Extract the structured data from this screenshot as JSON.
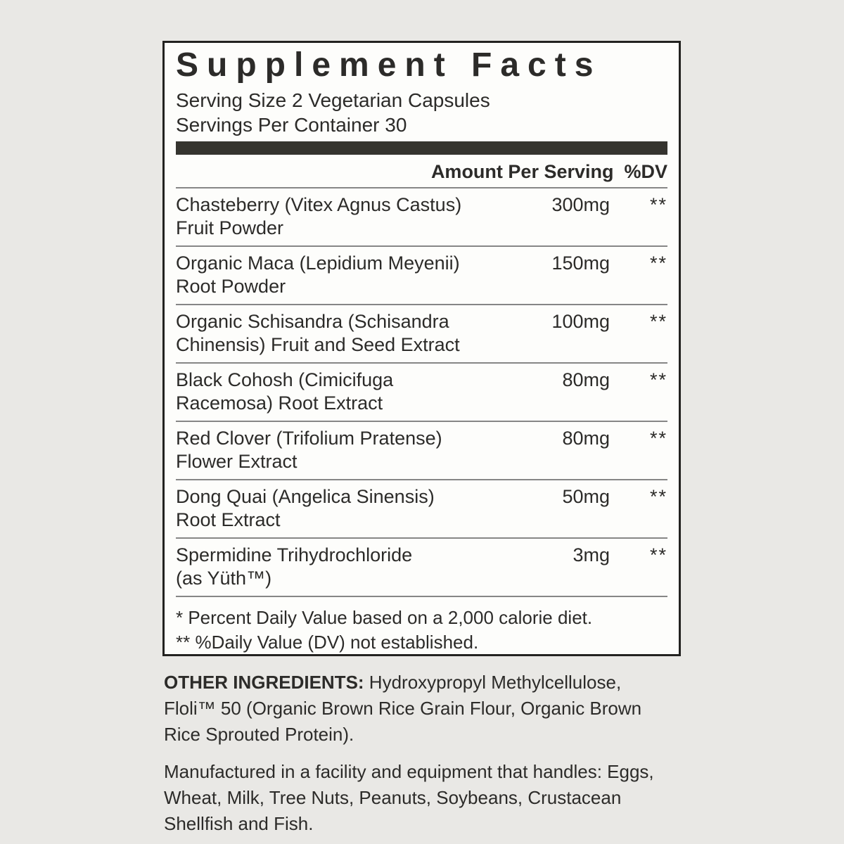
{
  "colors": {
    "page_background": "#e9e8e5",
    "panel_background": "#fdfdfb",
    "text": "#2c2b29",
    "border": "#232220",
    "divider": "#868686",
    "thick_bar": "#35342f"
  },
  "panel": {
    "title": "Supplement Facts",
    "serving_size": "Serving Size 2 Vegetarian Capsules",
    "servings_per_container": "Servings Per Container 30",
    "header": {
      "amount_label": "Amount Per Serving",
      "dv_label": "%DV"
    },
    "rows": [
      {
        "name": [
          "Chasteberry (Vitex Agnus Castus)",
          "Fruit Powder"
        ],
        "amount": "300mg",
        "dv": "**"
      },
      {
        "name": [
          "Organic Maca (Lepidium Meyenii)",
          "Root Powder"
        ],
        "amount": "150mg",
        "dv": "**"
      },
      {
        "name": [
          "Organic Schisandra (Schisandra",
          "Chinensis) Fruit and Seed Extract"
        ],
        "amount": "100mg",
        "dv": "**"
      },
      {
        "name": [
          "Black Cohosh (Cimicifuga",
          "Racemosa) Root Extract"
        ],
        "amount": "80mg",
        "dv": "**"
      },
      {
        "name": [
          "Red Clover (Trifolium Pratense)",
          "Flower Extract"
        ],
        "amount": "80mg",
        "dv": "**"
      },
      {
        "name": [
          "Dong Quai (Angelica Sinensis)",
          "Root Extract"
        ],
        "amount": "50mg",
        "dv": "**"
      },
      {
        "name": [
          "Spermidine Trihydrochloride",
          "(as Yüth™)"
        ],
        "amount": "3mg",
        "dv": "**"
      }
    ],
    "footnotes": [
      "* Percent Daily Value based on a 2,000 calorie diet.",
      "** %Daily Value (DV) not established."
    ]
  },
  "other_ingredients": {
    "label": "OTHER INGREDIENTS:",
    "line1_rest": " Hydroxypropyl Methylcellulose,",
    "lines": [
      "Floli™ 50 (Organic Brown Rice Grain Flour, Organic Brown",
      "Rice Sprouted Protein)."
    ]
  },
  "allergen_statement": {
    "lines": [
      "Manufactured in a facility and equipment that handles: Eggs,",
      "Wheat, Milk, Tree Nuts, Peanuts, Soybeans, Crustacean",
      "Shellfish and Fish."
    ]
  }
}
